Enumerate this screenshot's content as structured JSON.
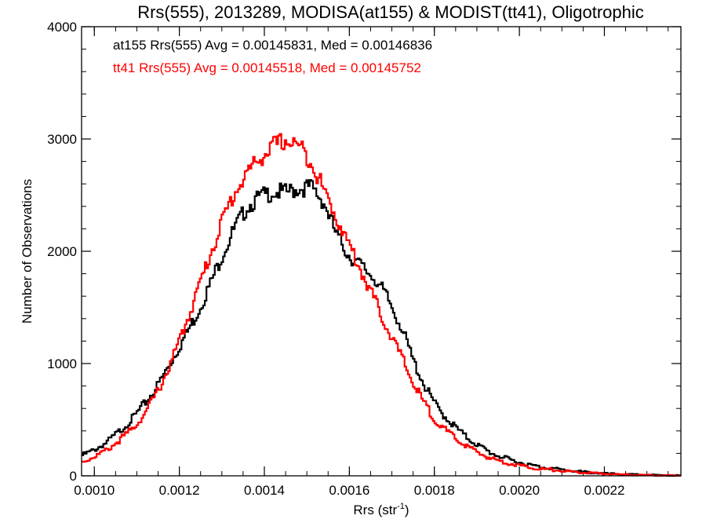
{
  "chart_data": {
    "type": "line",
    "title": "Rrs(555), 2013289, MODISA(at155) & MODIST(tt41), Oligotrophic",
    "xlabel_main": "Rrs (str",
    "xlabel_sup": "-1",
    "xlabel_close": ")",
    "ylabel": "Number of Observations",
    "xlim": [
      0.00097,
      0.00238
    ],
    "ylim": [
      0,
      4000
    ],
    "xticks": [
      0.001,
      0.0012,
      0.0014,
      0.0016,
      0.0018,
      0.002,
      0.0022
    ],
    "xtick_labels": [
      "0.0010",
      "0.0012",
      "0.0014",
      "0.0016",
      "0.0018",
      "0.0020",
      "0.0022"
    ],
    "yticks": [
      0,
      1000,
      2000,
      3000,
      4000
    ],
    "ytick_labels": [
      "0",
      "1000",
      "2000",
      "3000",
      "4000"
    ],
    "x_minor_step": 5e-05,
    "y_minor_step": 200,
    "legend_placement": "top-left",
    "series": [
      {
        "name": "at155",
        "legend_label": "at155 Rrs(555) Avg = 0.00145831, Med = 0.00146836",
        "color": "#000000",
        "x": [
          0.00097,
          0.001,
          0.00103,
          0.00106,
          0.00109,
          0.00112,
          0.00115,
          0.00118,
          0.00121,
          0.00124,
          0.00127,
          0.0013,
          0.00133,
          0.00136,
          0.00139,
          0.00142,
          0.00145,
          0.00148,
          0.00151,
          0.00154,
          0.00157,
          0.0016,
          0.00163,
          0.00166,
          0.00169,
          0.00172,
          0.00175,
          0.00178,
          0.00181,
          0.00184,
          0.00187,
          0.0019,
          0.00193,
          0.00196,
          0.00199,
          0.00202,
          0.00205,
          0.0021,
          0.00215,
          0.0022,
          0.00225,
          0.0023,
          0.00235,
          0.00238
        ],
        "y": [
          180,
          230,
          300,
          400,
          510,
          650,
          810,
          1010,
          1220,
          1430,
          1680,
          1960,
          2200,
          2400,
          2480,
          2530,
          2520,
          2560,
          2570,
          2440,
          2140,
          1960,
          1860,
          1760,
          1580,
          1350,
          1030,
          780,
          590,
          470,
          360,
          280,
          210,
          165,
          130,
          100,
          80,
          55,
          35,
          20,
          12,
          8,
          4,
          2
        ]
      },
      {
        "name": "tt41",
        "legend_label": "tt41 Rrs(555) Avg = 0.00145518, Med = 0.00145752",
        "color": "#ff0000",
        "x": [
          0.00097,
          0.001,
          0.00103,
          0.00106,
          0.00109,
          0.00112,
          0.00115,
          0.00118,
          0.00121,
          0.00124,
          0.00127,
          0.0013,
          0.00133,
          0.00136,
          0.00139,
          0.00142,
          0.00145,
          0.00148,
          0.00151,
          0.00154,
          0.00157,
          0.0016,
          0.00163,
          0.00166,
          0.00169,
          0.00172,
          0.00175,
          0.00178,
          0.00181,
          0.00184,
          0.00187,
          0.0019,
          0.00193,
          0.00196,
          0.00199,
          0.00202,
          0.00205,
          0.0021,
          0.00215,
          0.0022,
          0.00225,
          0.0023,
          0.00235,
          0.00238
        ],
        "y": [
          120,
          170,
          230,
          320,
          420,
          560,
          760,
          1000,
          1300,
          1620,
          1940,
          2260,
          2520,
          2700,
          2830,
          2930,
          2990,
          2940,
          2810,
          2540,
          2300,
          2050,
          1810,
          1560,
          1310,
          1080,
          830,
          620,
          460,
          360,
          280,
          210,
          160,
          125,
          100,
          80,
          62,
          45,
          28,
          18,
          10,
          6,
          3,
          1
        ]
      }
    ]
  }
}
